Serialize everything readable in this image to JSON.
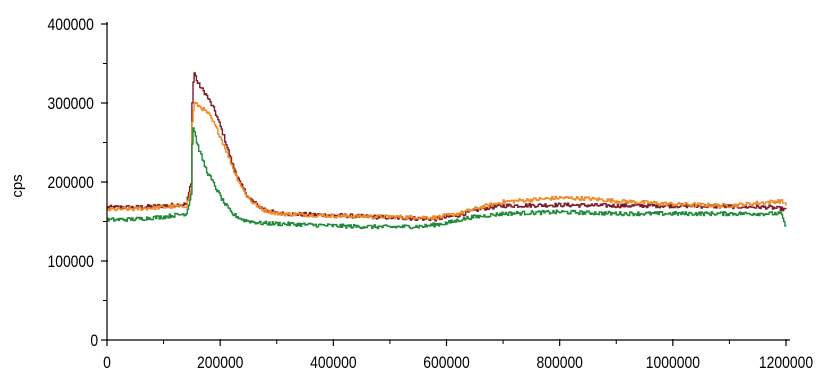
{
  "chart_data": {
    "type": "line",
    "title": "",
    "xlabel": "",
    "ylabel": "cps",
    "xlim": [
      0,
      1200000
    ],
    "ylim": [
      0,
      400000
    ],
    "grid": false,
    "legend": "none",
    "x_ticks": [
      0,
      200000,
      400000,
      600000,
      800000,
      1000000,
      1200000
    ],
    "x_tick_labels": [
      "0",
      "200000",
      "400000",
      "600000",
      "800000",
      "1000000",
      "1200000"
    ],
    "y_ticks": [
      0,
      100000,
      200000,
      300000,
      400000
    ],
    "y_tick_labels": [
      "0",
      "100000",
      "200000",
      "300000",
      "400000"
    ],
    "series": [
      {
        "color": "#7a1c2a",
        "points": [
          [
            0,
            168000
          ],
          [
            50000,
            168000
          ],
          [
            100000,
            170000
          ],
          [
            140000,
            172000
          ],
          [
            148000,
            200000
          ],
          [
            150000,
            300000
          ],
          [
            153000,
            340000
          ],
          [
            160000,
            325000
          ],
          [
            175000,
            310000
          ],
          [
            190000,
            290000
          ],
          [
            205000,
            260000
          ],
          [
            220000,
            225000
          ],
          [
            235000,
            198000
          ],
          [
            250000,
            180000
          ],
          [
            270000,
            168000
          ],
          [
            300000,
            160000
          ],
          [
            400000,
            158000
          ],
          [
            500000,
            155000
          ],
          [
            580000,
            153000
          ],
          [
            620000,
            158000
          ],
          [
            660000,
            166000
          ],
          [
            700000,
            170000
          ],
          [
            800000,
            171000
          ],
          [
            900000,
            170000
          ],
          [
            1000000,
            170000
          ],
          [
            1100000,
            169000
          ],
          [
            1170000,
            168000
          ],
          [
            1200000,
            165000
          ]
        ]
      },
      {
        "color": "#f08a28",
        "points": [
          [
            0,
            165000
          ],
          [
            50000,
            166000
          ],
          [
            100000,
            168000
          ],
          [
            140000,
            170000
          ],
          [
            148000,
            190000
          ],
          [
            150000,
            275000
          ],
          [
            153000,
            300000
          ],
          [
            165000,
            295000
          ],
          [
            180000,
            285000
          ],
          [
            195000,
            265000
          ],
          [
            210000,
            240000
          ],
          [
            225000,
            212000
          ],
          [
            240000,
            190000
          ],
          [
            255000,
            175000
          ],
          [
            275000,
            165000
          ],
          [
            300000,
            160000
          ],
          [
            400000,
            157000
          ],
          [
            500000,
            156000
          ],
          [
            580000,
            155000
          ],
          [
            620000,
            160000
          ],
          [
            660000,
            168000
          ],
          [
            700000,
            175000
          ],
          [
            800000,
            180000
          ],
          [
            850000,
            179000
          ],
          [
            900000,
            176000
          ],
          [
            1000000,
            172000
          ],
          [
            1100000,
            170000
          ],
          [
            1190000,
            176000
          ],
          [
            1200000,
            172000
          ]
        ]
      },
      {
        "color": "#1e8a3a",
        "points": [
          [
            0,
            152000
          ],
          [
            50000,
            153000
          ],
          [
            100000,
            156000
          ],
          [
            140000,
            160000
          ],
          [
            148000,
            185000
          ],
          [
            150000,
            248000
          ],
          [
            152000,
            270000
          ],
          [
            160000,
            245000
          ],
          [
            175000,
            215000
          ],
          [
            190000,
            195000
          ],
          [
            205000,
            175000
          ],
          [
            220000,
            160000
          ],
          [
            240000,
            152000
          ],
          [
            270000,
            148000
          ],
          [
            350000,
            146000
          ],
          [
            420000,
            144000
          ],
          [
            500000,
            143000
          ],
          [
            560000,
            144000
          ],
          [
            600000,
            148000
          ],
          [
            640000,
            155000
          ],
          [
            700000,
            160000
          ],
          [
            800000,
            162000
          ],
          [
            900000,
            160000
          ],
          [
            1000000,
            160000
          ],
          [
            1100000,
            160000
          ],
          [
            1190000,
            160000
          ],
          [
            1200000,
            142000
          ]
        ]
      }
    ]
  }
}
